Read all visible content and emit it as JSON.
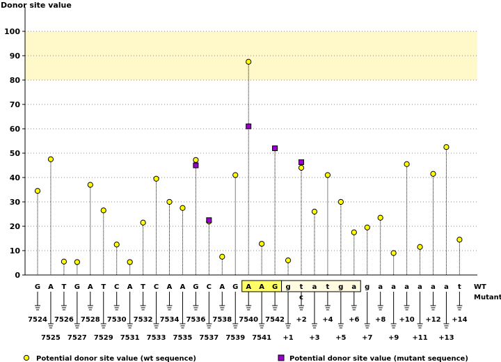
{
  "chart_data": {
    "type": "scatter",
    "ylabel": "Donor site value",
    "ylim": [
      0,
      100
    ],
    "yticks": [
      "0",
      "10",
      "20",
      "30",
      "40",
      "50",
      "60",
      "70",
      "80",
      "90",
      "100"
    ],
    "grid": true,
    "highlight_band": [
      80,
      100
    ],
    "highlight_color": "#fff8c8",
    "sequence": [
      "G",
      "A",
      "T",
      "G",
      "A",
      "T",
      "C",
      "A",
      "T",
      "C",
      "A",
      "A",
      "G",
      "C",
      "A",
      "G",
      "A",
      "A",
      "G",
      "g",
      "t",
      "a",
      "t",
      "g",
      "a",
      "g",
      "a",
      "a",
      "a",
      "a",
      "a",
      "a",
      "t"
    ],
    "positions": [
      "7524",
      "7525",
      "7526",
      "7527",
      "7528",
      "7529",
      "7530",
      "7531",
      "7532",
      "7533",
      "7534",
      "7535",
      "7536",
      "7537",
      "7538",
      "7539",
      "7540",
      "7541",
      "7542",
      "+1",
      "+2",
      "+3",
      "+4",
      "+5",
      "+6",
      "+7",
      "+8",
      "+9",
      "+10",
      "+11",
      "+12",
      "+13",
      "+14"
    ],
    "exon_box": {
      "start": 16,
      "end": 18,
      "color": "#ffff66"
    },
    "intron_box": {
      "start": 19,
      "end": 24,
      "color": "#fffbe0"
    },
    "row_labels": {
      "wt": "WT",
      "mutant": "Mutant"
    },
    "mutant_letter": {
      "index": 20,
      "letter": "c",
      "color": "#0000cc"
    },
    "series": [
      {
        "name": "Potential donor site value (wt sequence)",
        "marker": "circle",
        "color": "#ffff00",
        "values": [
          34.5,
          47.5,
          5.5,
          5.3,
          37,
          26.5,
          12.5,
          5.3,
          21.5,
          39.5,
          30,
          27.5,
          47.2,
          22,
          7.5,
          41,
          87.5,
          12.8,
          52,
          6,
          44,
          26,
          41,
          30,
          17.5,
          19.5,
          23.5,
          9,
          45.5,
          11.5,
          41.5,
          52.5,
          14.5
        ]
      },
      {
        "name": "Potential donor site value (mutant sequence)",
        "marker": "square",
        "color": "#9900cc",
        "points": [
          {
            "index": 12,
            "value": 45
          },
          {
            "index": 13,
            "value": 22.5
          },
          {
            "index": 16,
            "value": 61
          },
          {
            "index": 18,
            "value": 52
          },
          {
            "index": 20,
            "value": 46.3
          }
        ]
      }
    ]
  }
}
